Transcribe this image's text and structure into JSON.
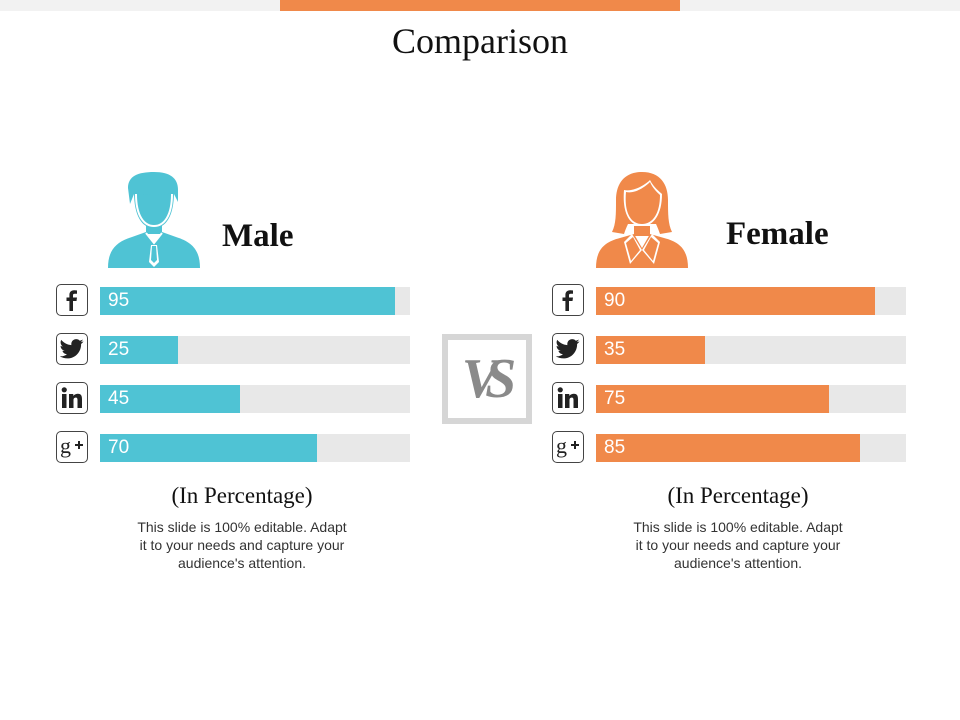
{
  "title": "Comparison",
  "colors": {
    "male": "#4fc3d4",
    "female": "#f0894a",
    "accent": "#f0894a"
  },
  "vs_label": "VS",
  "chart_data": [
    {
      "type": "bar",
      "title": "Male",
      "categories": [
        "facebook",
        "twitter",
        "linkedin",
        "google-plus"
      ],
      "values": [
        95,
        25,
        45,
        70
      ],
      "xlabel": "",
      "ylabel": "(In Percentage)",
      "ylim": [
        0,
        100
      ]
    },
    {
      "type": "bar",
      "title": "Female",
      "categories": [
        "facebook",
        "twitter",
        "linkedin",
        "google-plus"
      ],
      "values": [
        90,
        35,
        75,
        85
      ],
      "xlabel": "",
      "ylabel": "(In Percentage)",
      "ylim": [
        0,
        100
      ]
    }
  ],
  "panels": [
    {
      "label": "Male",
      "subtitle": "(In Percentage)",
      "note": "This slide is 100% editable. Adapt it to your needs and capture your audience's attention.",
      "bars": [
        {
          "icon": "facebook-icon",
          "value": "95"
        },
        {
          "icon": "twitter-icon",
          "value": "25"
        },
        {
          "icon": "linkedin-icon",
          "value": "45"
        },
        {
          "icon": "google-plus-icon",
          "value": "70"
        }
      ]
    },
    {
      "label": "Female",
      "subtitle": "(In Percentage)",
      "note": "This slide is 100% editable. Adapt it to your needs and capture your audience's attention.",
      "bars": [
        {
          "icon": "facebook-icon",
          "value": "90"
        },
        {
          "icon": "twitter-icon",
          "value": "35"
        },
        {
          "icon": "linkedin-icon",
          "value": "75"
        },
        {
          "icon": "google-plus-icon",
          "value": "85"
        }
      ]
    }
  ]
}
